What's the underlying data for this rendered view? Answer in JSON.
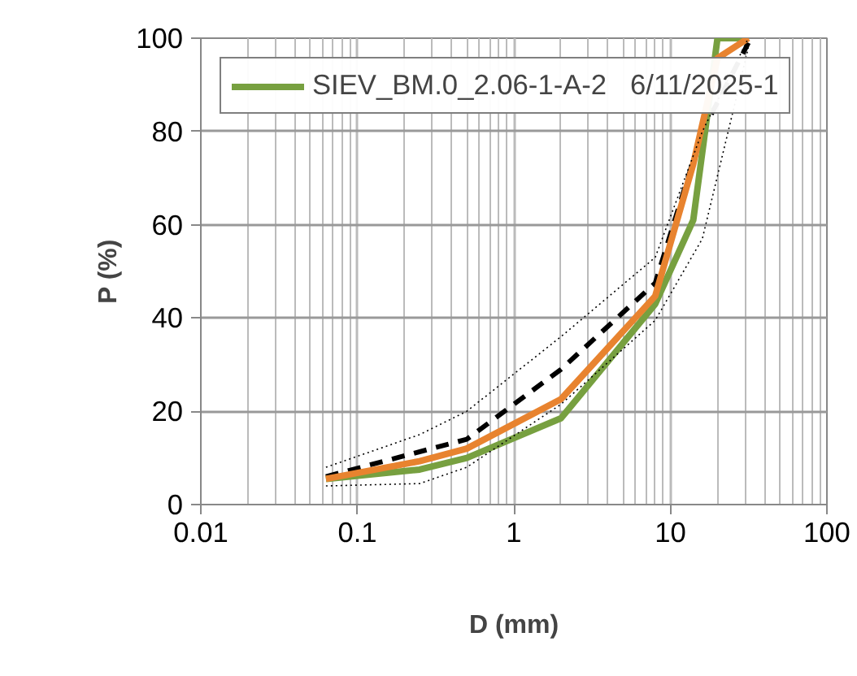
{
  "chart_data": {
    "type": "line",
    "xlabel": "D (mm)",
    "ylabel": "P (%)",
    "log": "x",
    "xlim": [
      0.01,
      100
    ],
    "xticks": [
      0.01,
      0.1,
      1,
      10,
      100
    ],
    "ylim": [
      0,
      100
    ],
    "yticks": [
      0,
      20,
      40,
      60,
      80,
      100
    ],
    "grid": true,
    "legend": "top left",
    "marker": "none",
    "series": [
      {
        "color": "#000000",
        "line_style": "dashed",
        "x": [
          0.063,
          0.5,
          2,
          8,
          16,
          31.5
        ],
        "values": [
          6,
          14,
          29,
          47.5,
          80,
          99
        ]
      },
      {
        "name": "SIEV_BM.0_2.06-1-A-2   6/11/2025-1",
        "color": "#77a040",
        "line_style": "solid",
        "x": [
          0.063,
          0.25,
          0.5,
          2,
          8,
          14,
          20,
          31.5
        ],
        "values": [
          5.5,
          7.5,
          10,
          18.5,
          43,
          61,
          100,
          100
        ]
      },
      {
        "color": "#e8832f",
        "line_style": "solid",
        "x": [
          0.063,
          0.25,
          0.5,
          2,
          8,
          14,
          20,
          31.5
        ],
        "values": [
          5.5,
          9.3,
          12,
          22.6,
          44.7,
          73,
          95.7,
          100
        ]
      },
      {
        "color": "#000000",
        "line_style": "dotted",
        "x": [
          0.063,
          0.25,
          0.5,
          2,
          8,
          16,
          31.5
        ],
        "values": [
          8,
          15,
          20,
          36,
          53,
          80,
          100
        ]
      },
      {
        "color": "#000000",
        "line_style": "dotted",
        "x": [
          0.063,
          0.25,
          0.5,
          2,
          8,
          16,
          31.5
        ],
        "values": [
          4,
          4.5,
          8,
          21.5,
          39.5,
          57,
          98
        ]
      }
    ]
  }
}
